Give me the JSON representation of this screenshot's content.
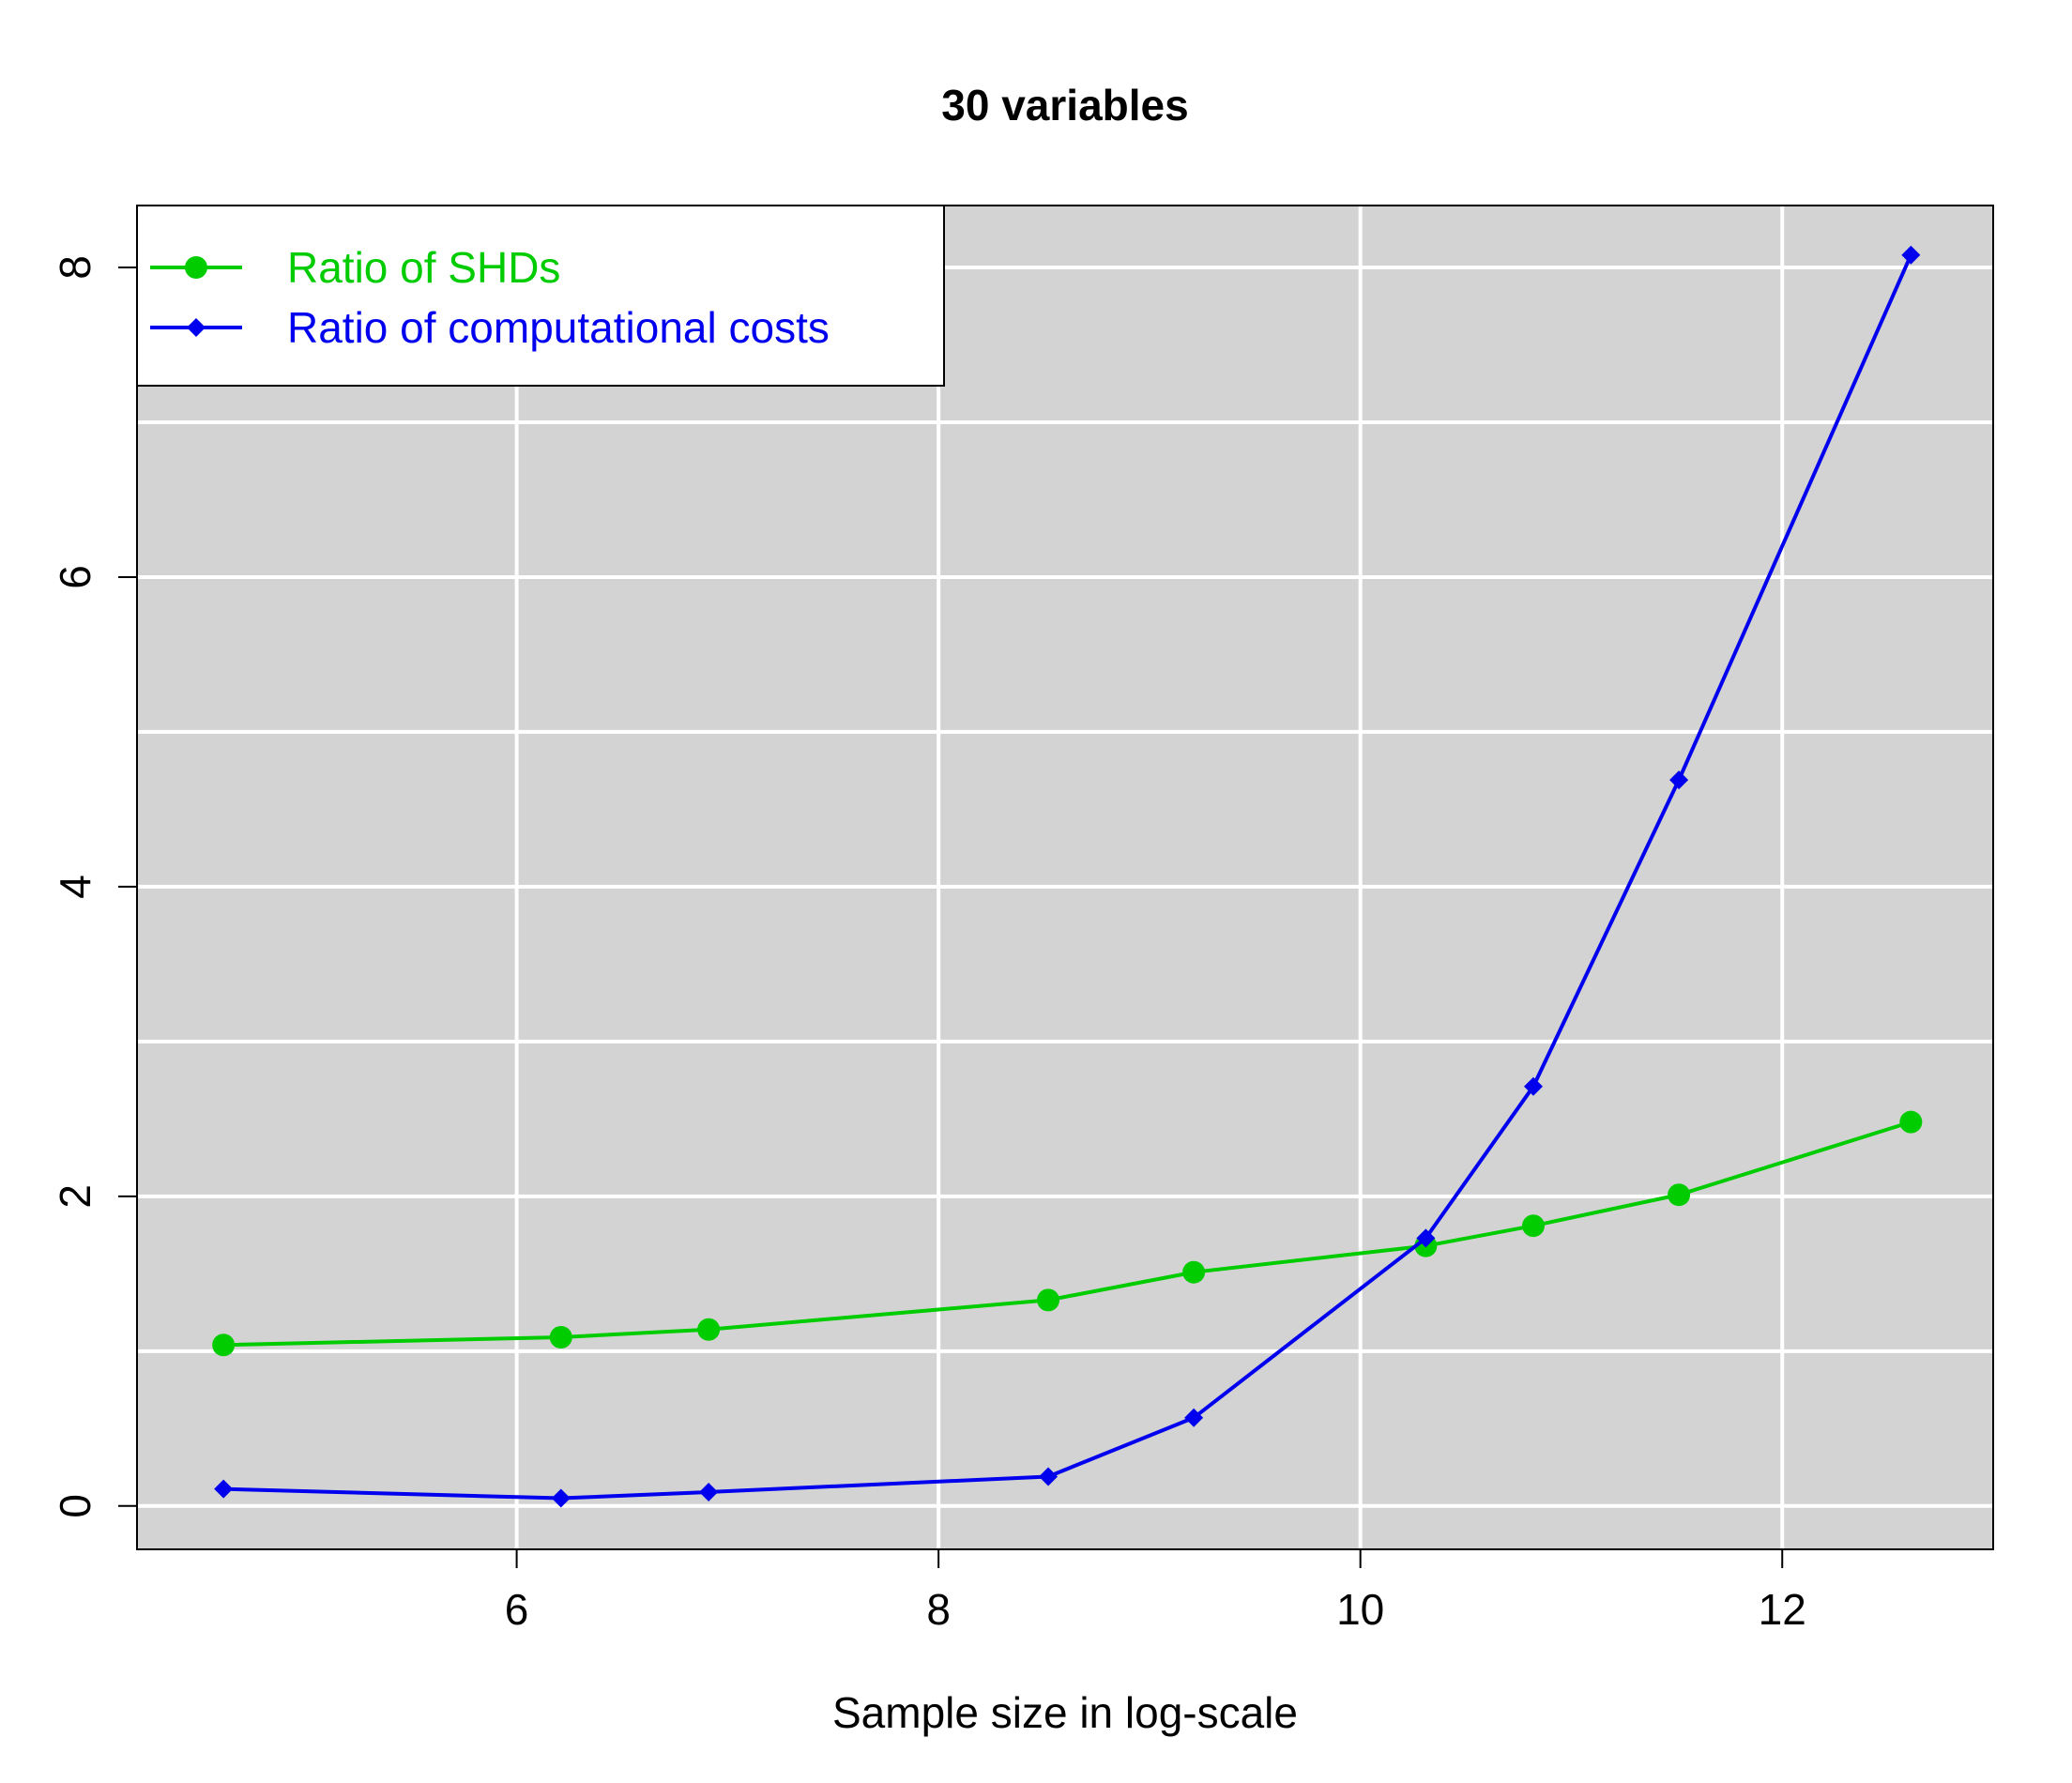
{
  "chart_data": {
    "type": "line",
    "title": "30 variables",
    "xlabel": "Sample size in log-scale",
    "ylabel": "",
    "xlim": [
      4.2,
      13.0
    ],
    "ylim": [
      -0.28,
      8.4
    ],
    "xticks": [
      6,
      8,
      10,
      12
    ],
    "yticks": [
      0,
      2,
      4,
      6,
      8
    ],
    "x_minor_grid": [
      6,
      8,
      10,
      12
    ],
    "y_grid": [
      0,
      1,
      2,
      3,
      4,
      5,
      6,
      7,
      8
    ],
    "grid": true,
    "background": "#d3d3d3",
    "legend_position": "top-left",
    "x": [
      4.61,
      6.21,
      6.91,
      8.52,
      9.21,
      10.31,
      10.82,
      11.51,
      12.61
    ],
    "series": [
      {
        "name": "Ratio of SHDs",
        "color": "#00cc00",
        "marker": "circle",
        "values": [
          1.04,
          1.09,
          1.14,
          1.33,
          1.51,
          1.68,
          1.81,
          2.01,
          2.48
        ]
      },
      {
        "name": "Ratio of computational costs",
        "color": "#0000ee",
        "marker": "diamond",
        "values": [
          0.11,
          0.05,
          0.09,
          0.19,
          0.57,
          1.73,
          2.71,
          4.69,
          8.08
        ]
      }
    ]
  }
}
